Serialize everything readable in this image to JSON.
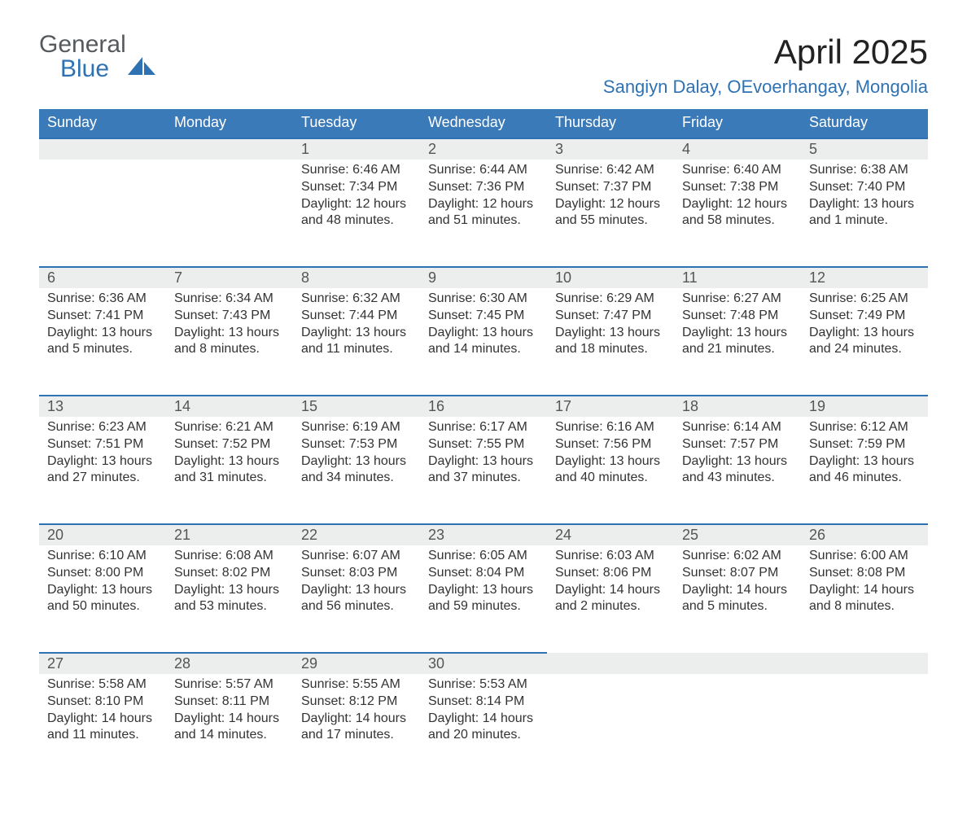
{
  "brand": {
    "word1": "General",
    "word2": "Blue"
  },
  "title": "April 2025",
  "location": "Sangiyn Dalay, OEvoerhangay, Mongolia",
  "colors": {
    "header_bg": "#3a7ab8",
    "accent": "#2e72b3",
    "daynum_bg": "#eceded",
    "text": "#333333",
    "page_bg": "#ffffff"
  },
  "typography": {
    "title_fontsize": 42,
    "location_fontsize": 22,
    "header_fontsize": 18,
    "daynum_fontsize": 18,
    "body_fontsize": 16
  },
  "weekdays": [
    "Sunday",
    "Monday",
    "Tuesday",
    "Wednesday",
    "Thursday",
    "Friday",
    "Saturday"
  ],
  "labels": {
    "sunrise": "Sunrise:",
    "sunset": "Sunset:",
    "daylight": "Daylight:"
  },
  "weeks": [
    [
      null,
      null,
      {
        "n": "1",
        "sunrise": "6:46 AM",
        "sunset": "7:34 PM",
        "daylight": "12 hours and 48 minutes."
      },
      {
        "n": "2",
        "sunrise": "6:44 AM",
        "sunset": "7:36 PM",
        "daylight": "12 hours and 51 minutes."
      },
      {
        "n": "3",
        "sunrise": "6:42 AM",
        "sunset": "7:37 PM",
        "daylight": "12 hours and 55 minutes."
      },
      {
        "n": "4",
        "sunrise": "6:40 AM",
        "sunset": "7:38 PM",
        "daylight": "12 hours and 58 minutes."
      },
      {
        "n": "5",
        "sunrise": "6:38 AM",
        "sunset": "7:40 PM",
        "daylight": "13 hours and 1 minute."
      }
    ],
    [
      {
        "n": "6",
        "sunrise": "6:36 AM",
        "sunset": "7:41 PM",
        "daylight": "13 hours and 5 minutes."
      },
      {
        "n": "7",
        "sunrise": "6:34 AM",
        "sunset": "7:43 PM",
        "daylight": "13 hours and 8 minutes."
      },
      {
        "n": "8",
        "sunrise": "6:32 AM",
        "sunset": "7:44 PM",
        "daylight": "13 hours and 11 minutes."
      },
      {
        "n": "9",
        "sunrise": "6:30 AM",
        "sunset": "7:45 PM",
        "daylight": "13 hours and 14 minutes."
      },
      {
        "n": "10",
        "sunrise": "6:29 AM",
        "sunset": "7:47 PM",
        "daylight": "13 hours and 18 minutes."
      },
      {
        "n": "11",
        "sunrise": "6:27 AM",
        "sunset": "7:48 PM",
        "daylight": "13 hours and 21 minutes."
      },
      {
        "n": "12",
        "sunrise": "6:25 AM",
        "sunset": "7:49 PM",
        "daylight": "13 hours and 24 minutes."
      }
    ],
    [
      {
        "n": "13",
        "sunrise": "6:23 AM",
        "sunset": "7:51 PM",
        "daylight": "13 hours and 27 minutes."
      },
      {
        "n": "14",
        "sunrise": "6:21 AM",
        "sunset": "7:52 PM",
        "daylight": "13 hours and 31 minutes."
      },
      {
        "n": "15",
        "sunrise": "6:19 AM",
        "sunset": "7:53 PM",
        "daylight": "13 hours and 34 minutes."
      },
      {
        "n": "16",
        "sunrise": "6:17 AM",
        "sunset": "7:55 PM",
        "daylight": "13 hours and 37 minutes."
      },
      {
        "n": "17",
        "sunrise": "6:16 AM",
        "sunset": "7:56 PM",
        "daylight": "13 hours and 40 minutes."
      },
      {
        "n": "18",
        "sunrise": "6:14 AM",
        "sunset": "7:57 PM",
        "daylight": "13 hours and 43 minutes."
      },
      {
        "n": "19",
        "sunrise": "6:12 AM",
        "sunset": "7:59 PM",
        "daylight": "13 hours and 46 minutes."
      }
    ],
    [
      {
        "n": "20",
        "sunrise": "6:10 AM",
        "sunset": "8:00 PM",
        "daylight": "13 hours and 50 minutes."
      },
      {
        "n": "21",
        "sunrise": "6:08 AM",
        "sunset": "8:02 PM",
        "daylight": "13 hours and 53 minutes."
      },
      {
        "n": "22",
        "sunrise": "6:07 AM",
        "sunset": "8:03 PM",
        "daylight": "13 hours and 56 minutes."
      },
      {
        "n": "23",
        "sunrise": "6:05 AM",
        "sunset": "8:04 PM",
        "daylight": "13 hours and 59 minutes."
      },
      {
        "n": "24",
        "sunrise": "6:03 AM",
        "sunset": "8:06 PM",
        "daylight": "14 hours and 2 minutes."
      },
      {
        "n": "25",
        "sunrise": "6:02 AM",
        "sunset": "8:07 PM",
        "daylight": "14 hours and 5 minutes."
      },
      {
        "n": "26",
        "sunrise": "6:00 AM",
        "sunset": "8:08 PM",
        "daylight": "14 hours and 8 minutes."
      }
    ],
    [
      {
        "n": "27",
        "sunrise": "5:58 AM",
        "sunset": "8:10 PM",
        "daylight": "14 hours and 11 minutes."
      },
      {
        "n": "28",
        "sunrise": "5:57 AM",
        "sunset": "8:11 PM",
        "daylight": "14 hours and 14 minutes."
      },
      {
        "n": "29",
        "sunrise": "5:55 AM",
        "sunset": "8:12 PM",
        "daylight": "14 hours and 17 minutes."
      },
      {
        "n": "30",
        "sunrise": "5:53 AM",
        "sunset": "8:14 PM",
        "daylight": "14 hours and 20 minutes."
      },
      null,
      null,
      null
    ]
  ]
}
